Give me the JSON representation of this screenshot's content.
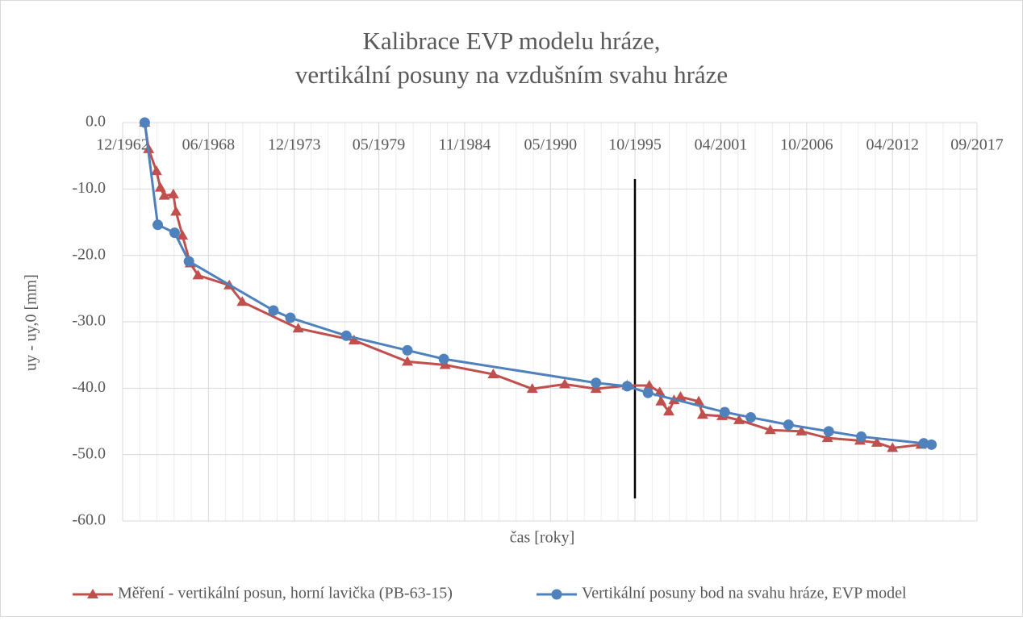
{
  "chart_data": {
    "type": "line",
    "title": [
      "Kalibrace EVP modelu hráze,",
      "vertikální posuny na vzdušním svahu hráze"
    ],
    "xlabel": "čas [roky]",
    "ylabel": "uy - uy,0 [mm]",
    "xlim": [
      "12/1962",
      "09/2017"
    ],
    "xticks": [
      "12/1962",
      "06/1968",
      "12/1973",
      "05/1979",
      "11/1984",
      "05/1990",
      "10/1995",
      "04/2001",
      "10/2006",
      "04/2012",
      "09/2017"
    ],
    "ylim": [
      -60,
      0
    ],
    "yticks": [
      {
        "value": 0,
        "label": "0.0"
      },
      {
        "value": -10,
        "label": "-10.0"
      },
      {
        "value": -20,
        "label": "-20.0"
      },
      {
        "value": -30,
        "label": "-30.0"
      },
      {
        "value": -40,
        "label": "-40.0"
      },
      {
        "value": -50,
        "label": "-50.0"
      },
      {
        "value": -60,
        "label": "-60.0"
      }
    ],
    "grid": true,
    "legend": "bottom",
    "series": [
      {
        "name": "Měření - vertikální posun, horní lavička (PB-63-15)",
        "color": "#c0504d",
        "marker": "triangle",
        "x": [
          "05/1964",
          "08/1964",
          "02/1965",
          "05/1965",
          "08/1965",
          "03/1966",
          "05/1966",
          "10/1966",
          "04/1967",
          "10/1967",
          "10/1969",
          "08/1970",
          "03/1974",
          "10/1977",
          "03/1981",
          "08/1983",
          "09/1986",
          "03/1989",
          "04/1991",
          "04/1993",
          "04/1995",
          "09/1996",
          "05/1997",
          "06/1997",
          "12/1997",
          "04/1998",
          "09/1998",
          "11/1999",
          "02/2000",
          "05/2001",
          "06/2002",
          "06/2004",
          "06/2006",
          "02/2008",
          "03/2010",
          "04/2011",
          "04/2012",
          "02/2014"
        ],
        "values": [
          0.0,
          -4.0,
          -7.3,
          -9.8,
          -11.0,
          -10.8,
          -13.4,
          -17.0,
          -21.2,
          -23.0,
          -24.5,
          -27.0,
          -31.0,
          -32.8,
          -36.0,
          -36.5,
          -37.9,
          -40.1,
          -39.4,
          -40.1,
          -39.6,
          -39.6,
          -40.6,
          -42.0,
          -43.5,
          -41.8,
          -41.3,
          -42.0,
          -44.0,
          -44.2,
          -44.8,
          -46.3,
          -46.5,
          -47.5,
          -47.9,
          -48.2,
          -49.0,
          -48.5
        ]
      },
      {
        "name": "Vertikální posuny bod na svahu hráze, EVP model",
        "color": "#4f81bd",
        "marker": "circle",
        "x": [
          "05/1964",
          "03/1965",
          "04/1966",
          "03/1967",
          "08/1972",
          "09/1973",
          "04/1977",
          "03/1981",
          "07/1983",
          "04/1993",
          "04/1995",
          "08/1996",
          "07/2001",
          "03/2003",
          "08/2005",
          "03/2008",
          "04/2010",
          "04/2014",
          "10/2014"
        ],
        "values": [
          0.0,
          -15.4,
          -16.6,
          -20.9,
          -28.3,
          -29.4,
          -32.1,
          -34.3,
          -35.6,
          -39.2,
          -39.7,
          -40.7,
          -43.6,
          -44.4,
          -45.5,
          -46.5,
          -47.3,
          -48.3,
          -48.5
        ]
      }
    ]
  }
}
